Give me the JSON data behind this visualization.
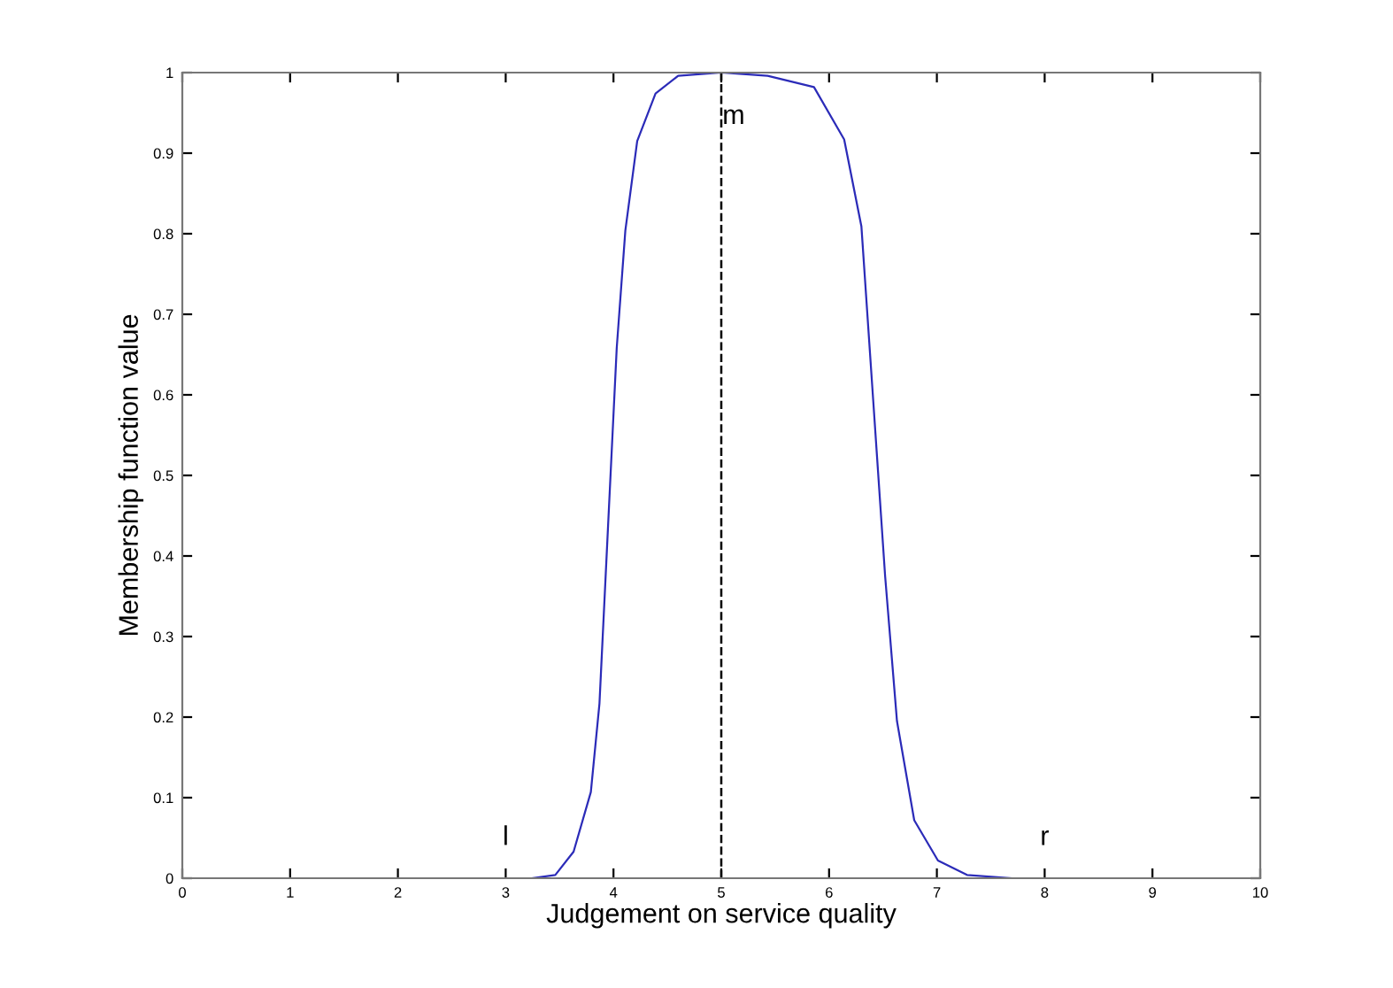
{
  "chart_data": {
    "type": "line",
    "xlabel": "Judgement on service quality",
    "ylabel": "Membership function value",
    "series": [
      {
        "color": "#2b2bb8",
        "x": [
          0,
          3,
          3.24,
          3.46,
          3.63,
          3.79,
          3.87,
          3.95,
          4.03,
          4.11,
          4.22,
          4.39,
          4.6,
          5,
          5.43,
          5.86,
          6.14,
          6.3,
          6.41,
          6.52,
          6.63,
          6.79,
          7.01,
          7.28,
          7.7,
          8,
          10
        ],
        "values": [
          0,
          0,
          0,
          0.004,
          0.033,
          0.107,
          0.217,
          0.438,
          0.658,
          0.804,
          0.915,
          0.974,
          0.996,
          1,
          0.996,
          0.982,
          0.917,
          0.809,
          0.592,
          0.375,
          0.195,
          0.072,
          0.022,
          0.004,
          0,
          0,
          0
        ]
      }
    ],
    "xlim": [
      0,
      10
    ],
    "ylim": [
      0,
      1
    ],
    "xticks": [
      0,
      1,
      2,
      3,
      4,
      5,
      6,
      7,
      8,
      9,
      10
    ],
    "yticks": [
      0,
      0.1,
      0.2,
      0.3,
      0.4,
      0.5,
      0.6,
      0.7,
      0.8,
      0.9,
      1
    ],
    "ref_lines": [
      {
        "axis": "x",
        "value": 5,
        "color": "#000000",
        "line_style": "dashed"
      }
    ],
    "annotations": [
      "l",
      "m",
      "r"
    ],
    "grid": false,
    "legend": false,
    "marker": "none",
    "line_style": "solid"
  }
}
